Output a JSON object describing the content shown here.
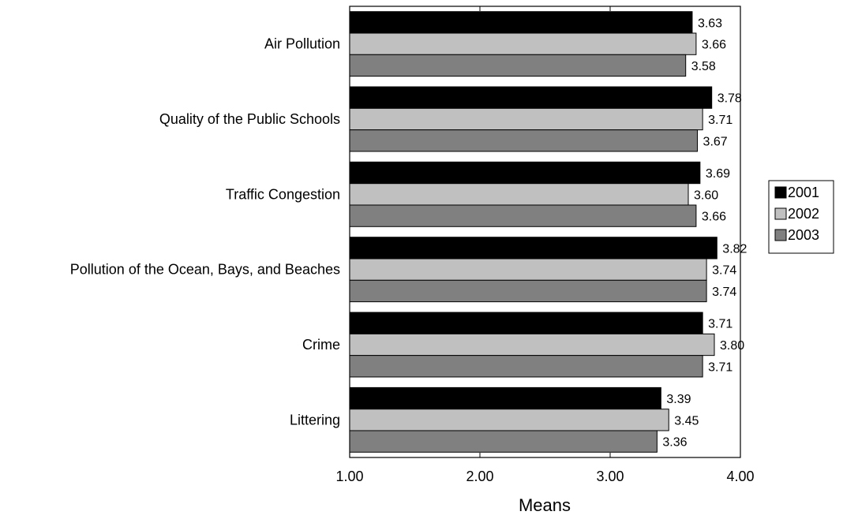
{
  "chart_data": {
    "type": "bar",
    "orientation": "horizontal",
    "title": "",
    "xlabel": "Means",
    "ylabel": "",
    "xlim": [
      1.0,
      4.0
    ],
    "xticks": [
      "1.00",
      "2.00",
      "3.00",
      "4.00"
    ],
    "grid": false,
    "legend_position": "right",
    "categories": [
      "Air Pollution",
      "Quality of the Public Schools",
      "Traffic Congestion",
      "Pollution of the Ocean, Bays, and Beaches",
      "Crime",
      "Littering"
    ],
    "series": [
      {
        "name": "2001",
        "color": "#000000",
        "values": [
          3.63,
          3.78,
          3.69,
          3.82,
          3.71,
          3.39
        ],
        "labels": [
          "3.63",
          "3.78",
          "3.69",
          "3.82",
          "3.71",
          "3.39"
        ]
      },
      {
        "name": "2002",
        "color": "#c0c0c0",
        "values": [
          3.66,
          3.71,
          3.6,
          3.74,
          3.8,
          3.45
        ],
        "labels": [
          "3.66",
          "3.71",
          "3.60",
          "3.74",
          "3.80",
          "3.45"
        ]
      },
      {
        "name": "2003",
        "color": "#808080",
        "values": [
          3.58,
          3.67,
          3.66,
          3.74,
          3.71,
          3.36
        ],
        "labels": [
          "3.58",
          "3.67",
          "3.66",
          "3.74",
          "3.71",
          "3.36"
        ]
      }
    ]
  }
}
